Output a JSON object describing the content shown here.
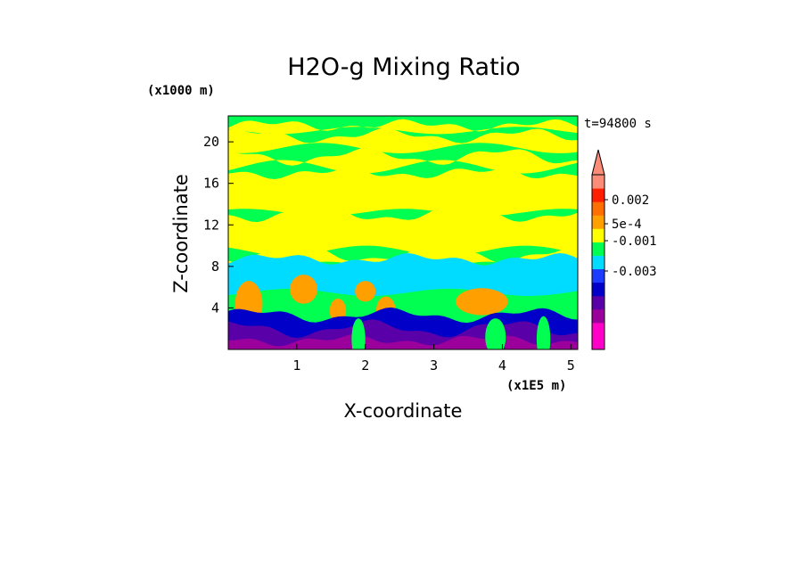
{
  "chart_data": {
    "type": "heatmap",
    "title": "H2O-g Mixing Ratio",
    "xlabel": "X-coordinate",
    "ylabel": "Z-coordinate",
    "x_unit": "(x1E5 m)",
    "y_unit": "(x1000 m)",
    "time_label": "t=94800 s",
    "xlim": [
      0,
      5.1
    ],
    "ylim": [
      0,
      22.5
    ],
    "x_ticks": [
      1,
      2,
      3,
      4,
      5
    ],
    "y_ticks": [
      4,
      8,
      12,
      16,
      20
    ],
    "colorbar": {
      "labels": [
        "0.002",
        "5e-4",
        "-0.001",
        "-0.003"
      ],
      "colors": [
        "#ff00c8",
        "#ff00c8",
        "#9c009c",
        "#5a00a8",
        "#0000c8",
        "#1e3cff",
        "#00dcff",
        "#00ff50",
        "#ffff00",
        "#ffa000",
        "#ff6e00",
        "#ff1e00",
        "#fa8c78"
      ],
      "extend_top": true
    },
    "layers": [
      {
        "color": "#00ff50",
        "bands": [
          [
            20.8,
            22.2
          ],
          [
            18.0,
            19.3
          ],
          [
            16.2,
            17.4
          ],
          [
            9.6,
            13.5
          ],
          [
            7.5,
            9.6
          ]
        ]
      },
      {
        "color": "#ffff00",
        "bands": [
          [
            21.1,
            21.6
          ],
          [
            19.4,
            20.6
          ],
          [
            17.6,
            18.6
          ],
          [
            13.2,
            17.0
          ],
          [
            9.5,
            13.0
          ],
          [
            7.8,
            9.2
          ]
        ]
      },
      {
        "color": "#00dcff",
        "bands": [
          [
            5.5,
            8.7
          ]
        ]
      },
      {
        "color": "#ffa000",
        "blobs": [
          [
            0.3,
            4.4,
            0.2,
            2.2
          ],
          [
            1.1,
            5.8,
            0.2,
            1.4
          ],
          [
            3.7,
            4.6,
            0.38,
            1.3
          ],
          [
            2.0,
            5.6,
            0.15,
            1.0
          ],
          [
            2.3,
            3.8,
            0.14,
            1.3
          ],
          [
            1.6,
            3.7,
            0.12,
            1.2
          ]
        ]
      },
      {
        "color": "#0000c8",
        "bands": [
          [
            0,
            3.3
          ]
        ]
      },
      {
        "color": "#5a00a8",
        "bands": [
          [
            0,
            2.0
          ]
        ]
      },
      {
        "color": "#9c009c",
        "bands": [
          [
            0,
            0.9
          ]
        ]
      },
      {
        "color": "#00ff50",
        "blobs": [
          [
            3.9,
            1.2,
            0.15,
            1.8
          ],
          [
            4.6,
            1.0,
            0.1,
            2.2
          ],
          [
            1.9,
            1.0,
            0.1,
            2.0
          ]
        ]
      }
    ]
  }
}
